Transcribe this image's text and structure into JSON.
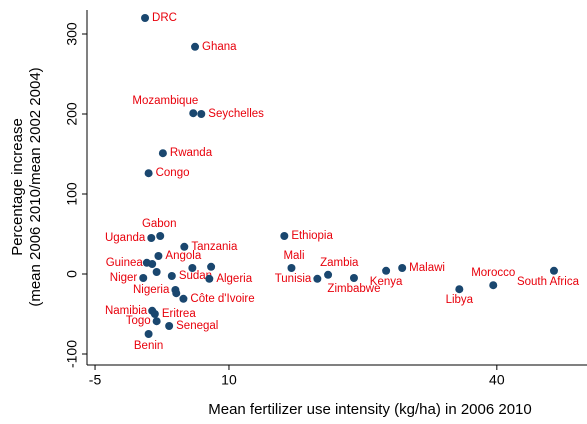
{
  "chart_data": {
    "type": "scatter",
    "x_label": "Mean fertilizer use intensity (kg/ha) in 2006 2010",
    "y_label": [
      "Percentage increase",
      "(mean 2006 2010/mean 2002 2004)"
    ],
    "color": "#1a476f",
    "label_color": "#e8000b",
    "xlim": [
      -5.9,
      50.1
    ],
    "ylim": [
      -113.75,
      330
    ],
    "xticks": [
      -5,
      10,
      40
    ],
    "yticks": [
      -100,
      0,
      100,
      200,
      300
    ],
    "labels": [
      "DRC",
      "Ghana",
      "Mozambique",
      "Seychelles",
      "Rwanda",
      "Congo",
      "Gabon",
      "Uganda",
      "Tanzania",
      "Ethiopia",
      "Angola",
      "Guinea",
      null,
      "Mali",
      null,
      null,
      "Niger",
      null,
      "Sudan",
      "Algeria",
      "Nigeria",
      null,
      "Côte d'Ivoire",
      "Tunisia",
      "Zambia",
      "Zimbabwe",
      "Kenya",
      "Malawi",
      "Libya",
      "Morocco",
      "South Africa",
      "Namibia",
      "Eritrea",
      "Togo",
      "Senegal",
      "Benin"
    ],
    "x": [
      0.6,
      6.2,
      6.0,
      6.9,
      2.6,
      1.0,
      2.3,
      1.3,
      5.0,
      16.2,
      2.1,
      0.8,
      1.4,
      17.0,
      5.9,
      8.0,
      0.4,
      1.9,
      3.6,
      7.8,
      4.0,
      4.1,
      4.9,
      19.9,
      21.1,
      24.0,
      27.6,
      29.4,
      35.8,
      39.6,
      46.4,
      1.4,
      1.7,
      1.9,
      3.3,
      1.0
    ],
    "values": [
      320,
      284,
      201,
      200,
      151,
      126,
      47.5,
      45,
      34,
      47.5,
      22.5,
      14,
      12.5,
      7.5,
      7.5,
      9,
      -5,
      2.5,
      -2.5,
      -6,
      -20,
      -24,
      -31,
      -6,
      -1,
      -5,
      4,
      7.5,
      -19,
      -14,
      4,
      -46,
      -50,
      -59,
      -65,
      -75
    ]
  }
}
